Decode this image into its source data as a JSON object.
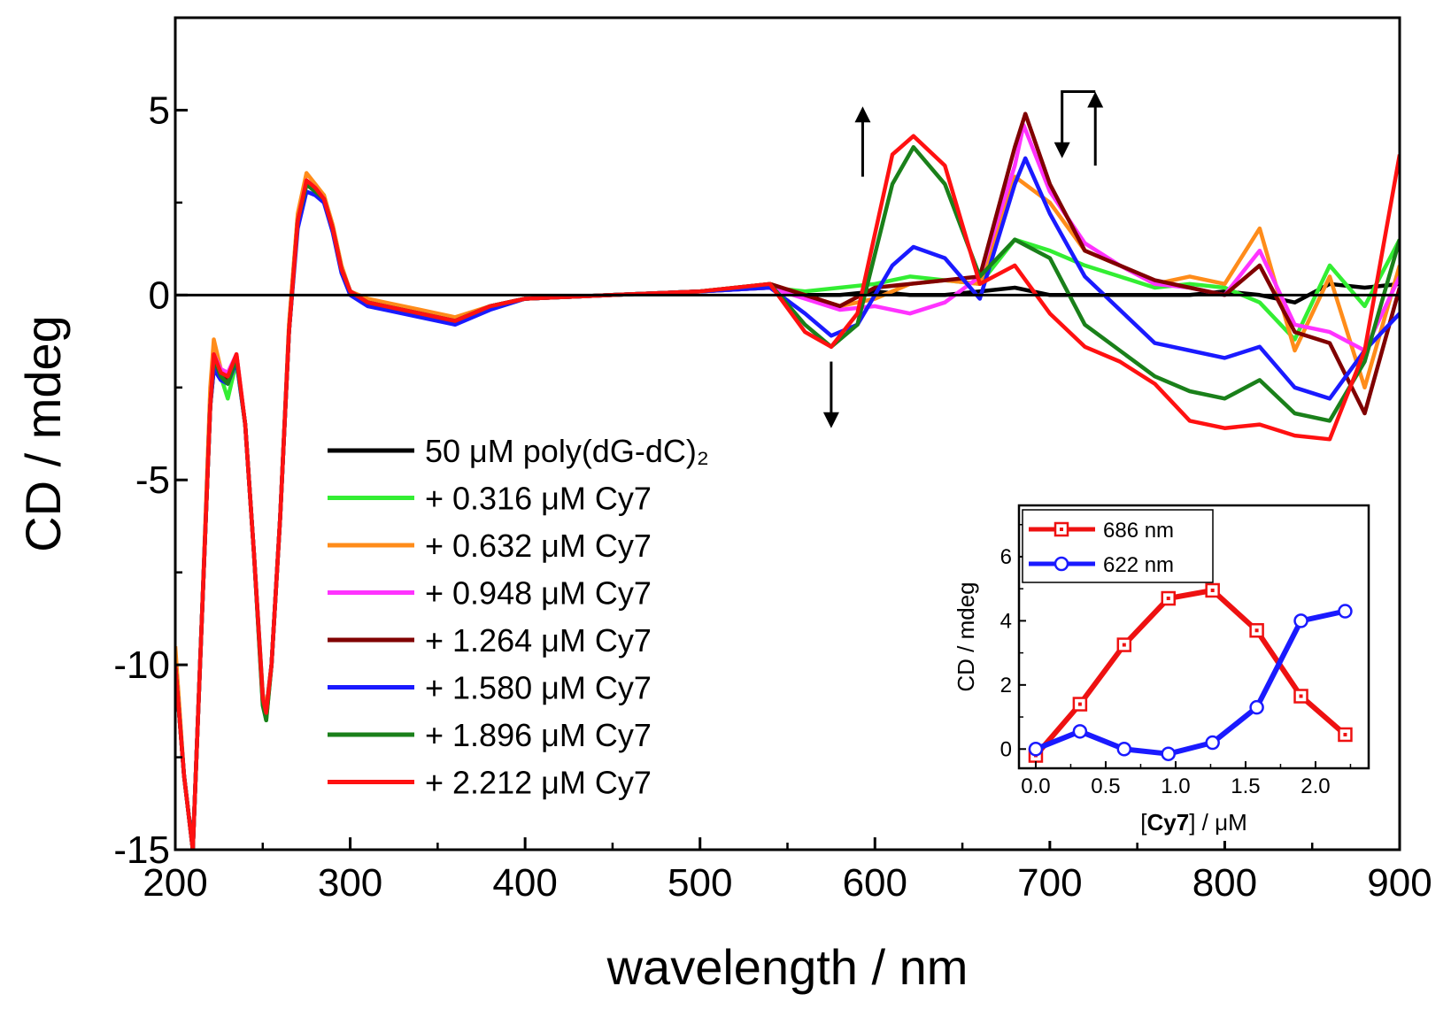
{
  "chart_data": [
    {
      "type": "line",
      "xlabel": "wavelength / nm",
      "ylabel": "CD / mdeg",
      "xlim": [
        200,
        900
      ],
      "ylim": [
        -15,
        7.5
      ],
      "x_ticks": [
        "200",
        "300",
        "400",
        "500",
        "600",
        "700",
        "800",
        "900"
      ],
      "y_ticks": [
        "-15",
        "-10",
        "-5",
        "0",
        "5"
      ],
      "zero_line": true,
      "legend_position": "center-left",
      "series": [
        {
          "name": "50 μM poly(dG-dC)₂",
          "color": "#000000",
          "x": [
            200,
            205,
            210,
            215,
            220,
            222,
            226,
            230,
            235,
            240,
            245,
            250,
            252,
            255,
            260,
            265,
            270,
            275,
            280,
            285,
            290,
            295,
            300,
            310,
            320,
            340,
            360,
            380,
            400,
            450,
            500,
            540,
            560,
            580,
            600,
            620,
            640,
            660,
            680,
            700,
            720,
            740,
            760,
            780,
            800,
            820,
            840,
            860,
            880,
            900
          ],
          "y": [
            -10,
            -13,
            -15,
            -9,
            -3,
            -2,
            -2.1,
            -2.3,
            -1.7,
            -3.5,
            -7,
            -10.8,
            -11.2,
            -10,
            -6,
            -1,
            2,
            3,
            2.8,
            2.6,
            1.8,
            0.7,
            0.1,
            -0.2,
            -0.3,
            -0.5,
            -0.7,
            -0.3,
            -0.1,
            0,
            0.1,
            0.2,
            0,
            0,
            0.1,
            0,
            0,
            0.1,
            0.2,
            0,
            0,
            0,
            0,
            0,
            0.1,
            0,
            -0.2,
            0.3,
            0.2,
            0.3
          ]
        },
        {
          "name": "+ 0.316 μM Cy7",
          "color": "#33ee33",
          "x": [
            200,
            205,
            210,
            215,
            220,
            222,
            226,
            230,
            235,
            240,
            245,
            250,
            252,
            255,
            260,
            265,
            270,
            275,
            280,
            285,
            290,
            295,
            300,
            310,
            320,
            340,
            360,
            380,
            400,
            450,
            500,
            540,
            560,
            580,
            600,
            620,
            640,
            660,
            680,
            700,
            720,
            740,
            760,
            780,
            800,
            820,
            840,
            860,
            880,
            900
          ],
          "y": [
            -10,
            -13,
            -15,
            -9,
            -3,
            -1.8,
            -2.2,
            -2.8,
            -1.8,
            -3.5,
            -7,
            -11,
            -11.5,
            -10,
            -6,
            -1,
            2,
            3.1,
            2.9,
            2.7,
            1.8,
            0.7,
            0.1,
            -0.2,
            -0.3,
            -0.5,
            -0.7,
            -0.3,
            -0.1,
            0,
            0.1,
            0.2,
            0.1,
            0.2,
            0.3,
            0.5,
            0.4,
            0.3,
            1.5,
            1.2,
            0.8,
            0.5,
            0.2,
            0.3,
            0.2,
            -0.2,
            -1.2,
            0.8,
            -0.3,
            1.5
          ]
        },
        {
          "name": "+ 0.632 μM Cy7",
          "color": "#ff8c1a",
          "x": [
            200,
            205,
            210,
            215,
            220,
            222,
            226,
            230,
            235,
            240,
            245,
            250,
            252,
            255,
            260,
            265,
            270,
            275,
            280,
            285,
            290,
            295,
            300,
            310,
            320,
            340,
            360,
            380,
            400,
            450,
            500,
            540,
            560,
            580,
            600,
            620,
            640,
            660,
            680,
            700,
            720,
            740,
            760,
            780,
            800,
            820,
            840,
            860,
            880,
            900
          ],
          "y": [
            -9.5,
            -13,
            -15,
            -9,
            -2.5,
            -1.2,
            -2,
            -2.2,
            -1.6,
            -3.5,
            -7,
            -10.8,
            -11.2,
            -10,
            -6,
            -0.8,
            2.2,
            3.3,
            3,
            2.7,
            1.9,
            0.8,
            0.1,
            -0.1,
            -0.2,
            -0.4,
            -0.6,
            -0.3,
            -0.1,
            0,
            0.1,
            0.3,
            0,
            -0.3,
            -0.1,
            0.3,
            0.4,
            0.3,
            3.2,
            2.5,
            1.2,
            0.8,
            0.3,
            0.5,
            0.3,
            1.8,
            -1.5,
            0.5,
            -2.5,
            0.8
          ]
        },
        {
          "name": "+ 0.948 μM Cy7",
          "color": "#ff33ff",
          "x": [
            200,
            205,
            210,
            215,
            220,
            222,
            226,
            230,
            235,
            240,
            245,
            250,
            252,
            255,
            260,
            265,
            270,
            275,
            280,
            285,
            290,
            295,
            300,
            310,
            320,
            340,
            360,
            380,
            400,
            450,
            500,
            540,
            560,
            580,
            600,
            620,
            640,
            660,
            680,
            685,
            700,
            720,
            740,
            760,
            780,
            800,
            820,
            840,
            860,
            880,
            900
          ],
          "y": [
            -10,
            -13,
            -15,
            -9,
            -3,
            -1.6,
            -2,
            -2.1,
            -1.6,
            -3.5,
            -7,
            -10.9,
            -11.3,
            -10,
            -6,
            -1,
            2,
            3.1,
            2.9,
            2.6,
            1.8,
            0.7,
            0.1,
            -0.2,
            -0.3,
            -0.5,
            -0.7,
            -0.3,
            -0.1,
            0,
            0.1,
            0.2,
            -0.1,
            -0.4,
            -0.3,
            -0.5,
            -0.2,
            0.5,
            3.5,
            4.6,
            2.8,
            1.4,
            0.8,
            0.3,
            0.2,
            0,
            1.2,
            -0.8,
            -1,
            -1.5,
            0.5
          ]
        },
        {
          "name": "+ 1.264 μM Cy7",
          "color": "#800000",
          "x": [
            200,
            205,
            210,
            215,
            220,
            222,
            226,
            230,
            235,
            240,
            245,
            250,
            252,
            255,
            260,
            265,
            270,
            275,
            280,
            285,
            290,
            295,
            300,
            310,
            320,
            340,
            360,
            380,
            400,
            450,
            500,
            540,
            560,
            580,
            600,
            620,
            640,
            660,
            680,
            686,
            700,
            720,
            740,
            760,
            780,
            800,
            820,
            840,
            860,
            880,
            900
          ],
          "y": [
            -10,
            -13,
            -15,
            -9,
            -3,
            -1.8,
            -2.1,
            -2.3,
            -1.7,
            -3.5,
            -7,
            -10.9,
            -11.3,
            -10,
            -6,
            -1,
            2,
            3,
            2.8,
            2.6,
            1.8,
            0.7,
            0.1,
            -0.2,
            -0.3,
            -0.5,
            -0.7,
            -0.3,
            -0.1,
            0,
            0.1,
            0.3,
            0,
            -0.3,
            0.2,
            0.3,
            0.4,
            0.5,
            4,
            4.9,
            3,
            1.2,
            0.8,
            0.4,
            0.2,
            0,
            0.8,
            -1,
            -1.3,
            -3.2,
            0.2
          ]
        },
        {
          "name": "+ 1.580 μM Cy7",
          "color": "#1a1aff",
          "x": [
            200,
            205,
            210,
            215,
            220,
            222,
            226,
            230,
            235,
            240,
            245,
            250,
            252,
            255,
            260,
            265,
            270,
            275,
            280,
            285,
            290,
            295,
            300,
            310,
            320,
            340,
            360,
            380,
            400,
            450,
            500,
            540,
            560,
            575,
            590,
            610,
            622,
            640,
            660,
            680,
            686,
            700,
            720,
            740,
            760,
            780,
            800,
            820,
            840,
            860,
            880,
            900
          ],
          "y": [
            -10,
            -13,
            -15,
            -9,
            -3,
            -2,
            -2.3,
            -2.4,
            -1.8,
            -3.5,
            -7,
            -11,
            -11.4,
            -10,
            -6,
            -1,
            1.8,
            2.8,
            2.7,
            2.5,
            1.7,
            0.6,
            0,
            -0.3,
            -0.4,
            -0.6,
            -0.8,
            -0.4,
            -0.1,
            0,
            0.1,
            0.2,
            -0.5,
            -1.1,
            -0.8,
            0.8,
            1.3,
            1,
            -0.1,
            3,
            3.7,
            2.2,
            0.5,
            -0.4,
            -1.3,
            -1.5,
            -1.7,
            -1.4,
            -2.5,
            -2.8,
            -1.5,
            -0.5
          ]
        },
        {
          "name": "+ 1.896 μM Cy7",
          "color": "#1a801a",
          "x": [
            200,
            205,
            210,
            215,
            220,
            222,
            226,
            230,
            235,
            240,
            245,
            250,
            252,
            255,
            260,
            265,
            270,
            275,
            280,
            285,
            290,
            295,
            300,
            310,
            320,
            340,
            360,
            380,
            400,
            450,
            500,
            540,
            560,
            575,
            590,
            610,
            622,
            640,
            660,
            680,
            700,
            720,
            740,
            760,
            780,
            800,
            820,
            840,
            860,
            880,
            900
          ],
          "y": [
            -10,
            -13,
            -15,
            -9,
            -3,
            -1.7,
            -2.2,
            -2.4,
            -1.7,
            -3.5,
            -7,
            -11.1,
            -11.5,
            -10,
            -6,
            -1,
            2,
            3,
            2.8,
            2.6,
            1.8,
            0.7,
            0.1,
            -0.2,
            -0.3,
            -0.5,
            -0.7,
            -0.3,
            -0.1,
            0,
            0.1,
            0.3,
            -0.8,
            -1.4,
            -0.8,
            3,
            4,
            3,
            0.5,
            1.5,
            1,
            -0.8,
            -1.5,
            -2.2,
            -2.6,
            -2.8,
            -2.3,
            -3.2,
            -3.4,
            -1.8,
            1.5
          ]
        },
        {
          "name": "+ 2.212 μM Cy7",
          "color": "#ff1111",
          "x": [
            200,
            205,
            210,
            215,
            220,
            222,
            226,
            230,
            235,
            240,
            245,
            250,
            252,
            255,
            260,
            265,
            270,
            275,
            280,
            285,
            290,
            295,
            300,
            310,
            320,
            340,
            360,
            380,
            400,
            450,
            500,
            540,
            560,
            575,
            590,
            610,
            622,
            640,
            660,
            680,
            700,
            720,
            740,
            760,
            780,
            800,
            820,
            840,
            860,
            880,
            900
          ],
          "y": [
            -10,
            -13,
            -15,
            -9,
            -3,
            -1.6,
            -2.1,
            -2.2,
            -1.6,
            -3.5,
            -7,
            -10.9,
            -11.3,
            -10,
            -6,
            -1,
            2,
            3.1,
            2.9,
            2.6,
            1.8,
            0.7,
            0.1,
            -0.2,
            -0.3,
            -0.5,
            -0.7,
            -0.3,
            -0.1,
            0,
            0.1,
            0.3,
            -1,
            -1.4,
            -0.5,
            3.8,
            4.3,
            3.5,
            0.3,
            0.8,
            -0.5,
            -1.4,
            -1.8,
            -2.4,
            -3.4,
            -3.6,
            -3.5,
            -3.8,
            -3.9,
            -1.5,
            3.8
          ]
        }
      ],
      "annotations": [
        {
          "type": "arrow",
          "direction": "up",
          "x": 593,
          "y_from": 3.2,
          "y_to": 5.1
        },
        {
          "type": "arrow",
          "direction": "down",
          "x": 575,
          "y_from": -1.8,
          "y_to": -3.6
        },
        {
          "type": "arrow",
          "direction": "down-then-up",
          "x_down": 707,
          "x_up": 726,
          "y_low": 3.7,
          "y_high": 5.5
        }
      ]
    },
    {
      "type": "line",
      "xlabel_bold": "Cy7",
      "xlabel_open": "[",
      "xlabel_close": "] / μM",
      "ylabel": "CD / mdeg",
      "xlim": [
        -0.12,
        2.38
      ],
      "ylim": [
        -0.6,
        7.6
      ],
      "x_ticks": [
        "0.0",
        "0.5",
        "1.0",
        "1.5",
        "2.0"
      ],
      "y_ticks": [
        "0",
        "2",
        "4",
        "6"
      ],
      "legend_position": "top-left",
      "series": [
        {
          "name": "686 nm",
          "color": "#ee1111",
          "marker": "square",
          "x": [
            0,
            0.316,
            0.632,
            0.948,
            1.264,
            1.58,
            1.896,
            2.212
          ],
          "y": [
            -0.2,
            1.4,
            3.25,
            4.7,
            4.95,
            3.7,
            1.65,
            0.45
          ]
        },
        {
          "name": "622 nm",
          "color": "#1a1aff",
          "marker": "circle",
          "x": [
            0,
            0.316,
            0.632,
            0.948,
            1.264,
            1.58,
            1.896,
            2.212
          ],
          "y": [
            0,
            0.55,
            0,
            -0.15,
            0.2,
            1.3,
            4,
            4.3
          ]
        }
      ]
    }
  ]
}
